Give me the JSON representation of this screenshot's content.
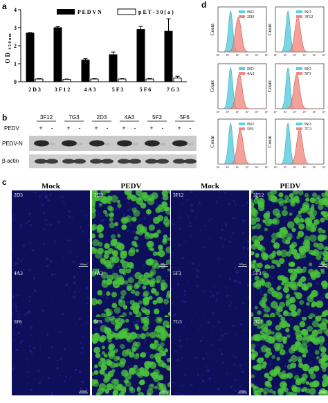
{
  "panels": {
    "a": "a",
    "b": "b",
    "c": "c",
    "d": "d"
  },
  "chart_data": [
    {
      "type": "bar",
      "categories": [
        "2 D 3",
        "3 F 1 2",
        "4 A 3",
        "5 F 3",
        "5 F 6",
        "7 G 3"
      ],
      "series": [
        {
          "name": "P E D V  N",
          "values": [
            2.7,
            3.0,
            1.2,
            1.5,
            2.9,
            2.8
          ],
          "errors": [
            0.03,
            0.06,
            0.08,
            0.15,
            0.17,
            0.7
          ],
          "color": "#000000"
        },
        {
          "name": "p E T - 3 0 ( a )",
          "values": [
            0.15,
            0.13,
            0.15,
            0.15,
            0.15,
            0.2
          ],
          "errors": [
            0.02,
            0.02,
            0.02,
            0.02,
            0.03,
            0.1
          ],
          "color": "#ffffff"
        }
      ],
      "ylabel": "O D",
      "ylabel_sub": "4 5 0 n m",
      "ylim": [
        0,
        4
      ],
      "yticks": [
        0,
        1,
        2,
        3,
        4
      ],
      "legend": "top"
    },
    {
      "type": "histogram",
      "xticks": [
        "10⁰",
        "10¹",
        "10²",
        "10³",
        "10⁴",
        "10⁵"
      ],
      "ylabel": "Count",
      "colors": {
        "iso": "#5ecfe0",
        "sample": "#f08a80"
      },
      "panels": [
        {
          "iso": "ISO",
          "sample": "2D3",
          "iso_peak": 1.3,
          "sample_peak": 2.1
        },
        {
          "iso": "ISO",
          "sample": "3F12",
          "iso_peak": 1.3,
          "sample_peak": 2.3
        },
        {
          "iso": "ISO",
          "sample": "4A3",
          "iso_peak": 1.3,
          "sample_peak": 2.2
        },
        {
          "iso": "ISO",
          "sample": "5F3",
          "iso_peak": 1.3,
          "sample_peak": 2.2
        },
        {
          "iso": "ISO",
          "sample": "5F6",
          "iso_peak": 1.3,
          "sample_peak": 2.3
        },
        {
          "iso": "ISO",
          "sample": "7G3",
          "iso_peak": 1.3,
          "sample_peak": 2.5
        }
      ]
    }
  ],
  "western_blot": {
    "clones": [
      "3F12",
      "7G3",
      "2D3",
      "4A3",
      "5F3",
      "5F6"
    ],
    "pedv_label": "PEDV",
    "signs": [
      "+",
      "-"
    ],
    "row_labels": [
      "PEDV-N",
      "β-actin"
    ]
  },
  "immunofluorescence": {
    "headers": [
      "Mock",
      "PEDV",
      "Mock",
      "PEDV"
    ],
    "panels": [
      "2D3",
      "2D3",
      "3F12",
      "3F12",
      "4A3",
      "4A3",
      "5F3",
      "5F3",
      "5F6",
      "5F6",
      "7G3",
      "7G3"
    ],
    "scale_label": "100μm",
    "colors": {
      "nuclei": "#0d0f5a",
      "stain": "#49c33a"
    }
  }
}
